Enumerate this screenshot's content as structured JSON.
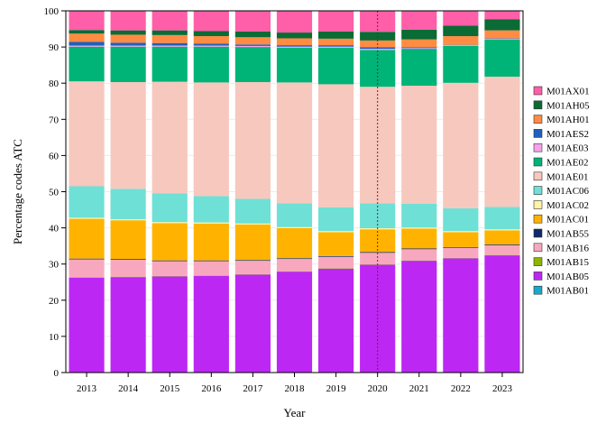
{
  "chart_data": {
    "type": "bar",
    "stacked": true,
    "title": "",
    "xlabel": "Year",
    "ylabel": "Percentage codes ATC",
    "ylim": [
      0,
      100
    ],
    "yticks": [
      0,
      10,
      20,
      30,
      40,
      50,
      60,
      70,
      80,
      90,
      100
    ],
    "grid": true,
    "legend_position": "right",
    "reference_line": {
      "x": "2020",
      "color": "#8b1a1a",
      "style": "dotted"
    },
    "categories": [
      "2013",
      "2014",
      "2015",
      "2016",
      "2017",
      "2018",
      "2019",
      "2020",
      "2021",
      "2022",
      "2023"
    ],
    "series": [
      {
        "name": "M01AB01",
        "color": "#17a9c9",
        "values": [
          0.1,
          0.1,
          0.1,
          0.1,
          0.1,
          0.1,
          0.1,
          0.1,
          0.1,
          0.1,
          0.1
        ]
      },
      {
        "name": "M01AB05",
        "color": "#bc27f4",
        "values": [
          26.1,
          26.3,
          26.5,
          26.6,
          27.0,
          27.8,
          28.6,
          29.7,
          30.8,
          31.5,
          32.3
        ]
      },
      {
        "name": "M01AB15",
        "color": "#8db600",
        "values": [
          0.1,
          0.1,
          0.1,
          0.1,
          0.1,
          0.1,
          0.1,
          0.1,
          0.1,
          0.1,
          0.1
        ]
      },
      {
        "name": "M01AB16",
        "color": "#f7a8bf",
        "values": [
          5.0,
          4.7,
          4.1,
          4.0,
          3.7,
          3.4,
          3.2,
          3.2,
          3.1,
          2.8,
          2.7
        ]
      },
      {
        "name": "M01AB55",
        "color": "#0d2a6b",
        "values": [
          0.2,
          0.2,
          0.2,
          0.2,
          0.2,
          0.2,
          0.2,
          0.2,
          0.2,
          0.2,
          0.2
        ]
      },
      {
        "name": "M01AC01",
        "color": "#ffb300",
        "values": [
          11.0,
          10.7,
          10.3,
          10.2,
          9.8,
          8.3,
          6.6,
          6.3,
          5.5,
          4.1,
          3.9
        ]
      },
      {
        "name": "M01AC02",
        "color": "#fff4a3",
        "values": [
          0.3,
          0.3,
          0.3,
          0.3,
          0.3,
          0.3,
          0.3,
          0.3,
          0.3,
          0.3,
          0.3
        ]
      },
      {
        "name": "M01AC06",
        "color": "#6ee0d6",
        "values": [
          8.7,
          8.4,
          7.9,
          7.3,
          6.8,
          6.6,
          6.6,
          6.9,
          6.6,
          6.3,
          6.2
        ]
      },
      {
        "name": "M01AE01",
        "color": "#f7c8bd",
        "values": [
          29.0,
          29.5,
          30.9,
          31.4,
          32.3,
          33.4,
          34.0,
          32.2,
          32.6,
          34.7,
          36.0
        ]
      },
      {
        "name": "M01AE02",
        "color": "#00b377",
        "values": [
          9.6,
          9.8,
          9.7,
          9.9,
          9.7,
          9.6,
          10.1,
          10.2,
          10.2,
          10.2,
          10.3
        ]
      },
      {
        "name": "M01AE03",
        "color": "#f7a1ea",
        "values": [
          0.3,
          0.3,
          0.3,
          0.3,
          0.3,
          0.3,
          0.3,
          0.3,
          0.2,
          0.2,
          0.2
        ]
      },
      {
        "name": "M01AES2",
        "color": "#1f5fbf",
        "values": [
          1.0,
          0.8,
          0.7,
          0.5,
          0.4,
          0.4,
          0.4,
          0.4,
          0.2,
          0.1,
          0.1
        ]
      },
      {
        "name": "M01AH01",
        "color": "#ff8c42",
        "values": [
          2.3,
          2.2,
          2.2,
          2.1,
          2.0,
          1.9,
          1.8,
          1.9,
          2.2,
          2.4,
          2.2
        ]
      },
      {
        "name": "M01AH05",
        "color": "#0a6b35",
        "values": [
          1.0,
          1.2,
          1.3,
          1.4,
          1.6,
          1.6,
          2.0,
          2.4,
          2.7,
          2.9,
          3.1
        ]
      },
      {
        "name": "M01AX01",
        "color": "#ff5ea8",
        "values": [
          5.3,
          5.4,
          5.4,
          5.6,
          5.7,
          6.0,
          5.7,
          5.8,
          5.2,
          4.2,
          2.3
        ]
      }
    ]
  }
}
